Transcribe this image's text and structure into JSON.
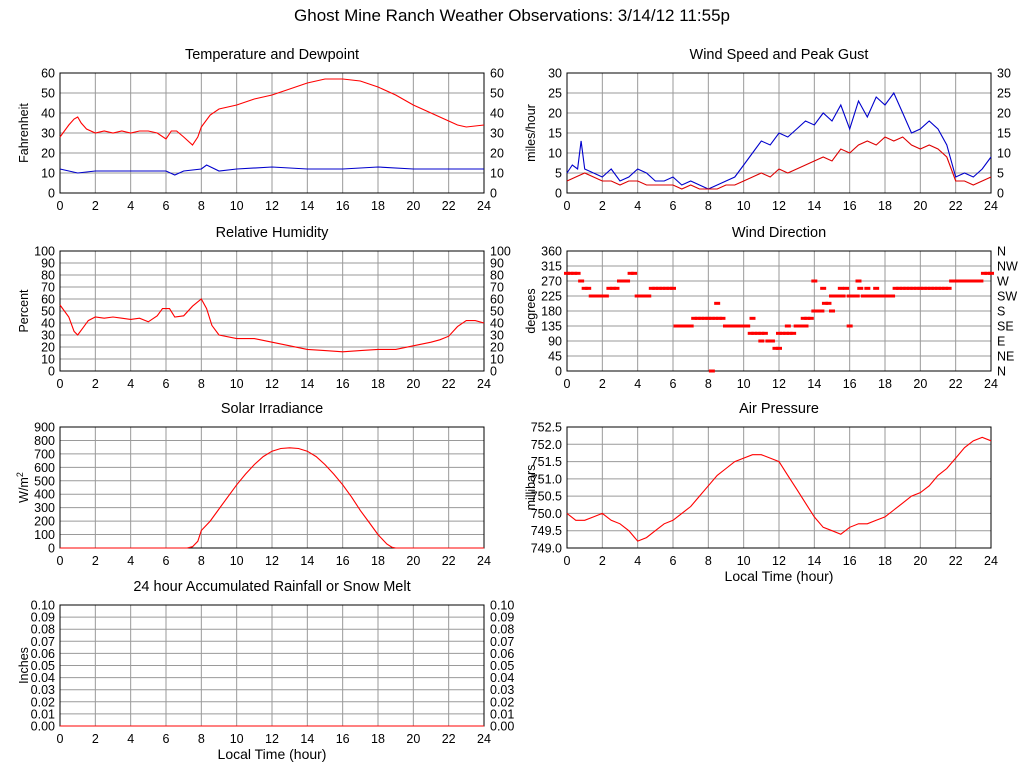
{
  "title": "Ghost Mine Ranch Weather Observations: 3/14/12 11:55p",
  "x_axis": {
    "ticks": [
      "0",
      "2",
      "4",
      "6",
      "8",
      "10",
      "12",
      "14",
      "16",
      "18",
      "20",
      "22",
      "24"
    ],
    "label": "Local Time (hour)"
  },
  "chart_data": [
    {
      "id": "temperature",
      "type": "line",
      "title": "Temperature and Dewpoint",
      "ylabel": "Fahrenheit",
      "xlim": [
        0,
        24
      ],
      "ylim": [
        0,
        60
      ],
      "yticks": [
        "0",
        "10",
        "20",
        "30",
        "40",
        "50",
        "60"
      ],
      "right_ticks": [
        "0",
        "10",
        "20",
        "30",
        "40",
        "50",
        "60"
      ],
      "grid": true,
      "series": [
        {
          "color": "#ff0000",
          "x": [
            0,
            0.5,
            0.8,
            1.0,
            1.2,
            1.5,
            2.0,
            2.5,
            3.0,
            3.5,
            4.0,
            4.5,
            5.0,
            5.5,
            6.0,
            6.3,
            6.6,
            7.0,
            7.5,
            7.8,
            8.0,
            8.5,
            9.0,
            10,
            11,
            12,
            13,
            14,
            15,
            16,
            17,
            18,
            19,
            20,
            21,
            22,
            22.5,
            23,
            24
          ],
          "y": [
            28,
            34,
            37,
            38,
            35,
            32,
            30,
            31,
            30,
            31,
            30,
            31,
            31,
            30,
            27,
            31,
            31,
            28,
            24,
            28,
            33,
            39,
            42,
            44,
            47,
            49,
            52,
            55,
            57,
            57,
            56,
            53,
            49,
            44,
            40,
            36,
            34,
            33,
            34
          ]
        },
        {
          "color": "#0000cc",
          "x": [
            0,
            1,
            2,
            3,
            4,
            5,
            6,
            6.5,
            7,
            8,
            8.3,
            9,
            10,
            12,
            14,
            16,
            18,
            20,
            22,
            24
          ],
          "y": [
            12,
            10,
            11,
            11,
            11,
            11,
            11,
            9,
            11,
            12,
            14,
            11,
            12,
            13,
            12,
            12,
            13,
            12,
            12,
            12
          ]
        }
      ]
    },
    {
      "id": "wind-speed",
      "type": "line",
      "title": "Wind Speed and Peak Gust",
      "ylabel": "miles/hour",
      "xlim": [
        0,
        24
      ],
      "ylim": [
        0,
        30
      ],
      "yticks": [
        "0",
        "5",
        "10",
        "15",
        "20",
        "25",
        "30"
      ],
      "right_ticks": [
        "0",
        "5",
        "10",
        "15",
        "20",
        "25",
        "30"
      ],
      "grid": true,
      "series": [
        {
          "color": "#0000cc",
          "x": [
            0,
            0.3,
            0.6,
            0.8,
            1.0,
            1.5,
            2,
            2.5,
            3,
            3.5,
            4,
            4.5,
            5,
            5.5,
            6,
            6.5,
            7,
            7.5,
            8,
            8.5,
            9,
            9.5,
            10,
            10.5,
            11,
            11.5,
            12,
            12.5,
            13,
            13.5,
            14,
            14.5,
            15,
            15.5,
            16,
            16.5,
            17,
            17.5,
            18,
            18.5,
            19,
            19.5,
            20,
            20.5,
            21,
            21.5,
            22,
            22.5,
            23,
            23.5,
            24
          ],
          "y": [
            5,
            7,
            6,
            13,
            6,
            5,
            4,
            6,
            3,
            4,
            6,
            5,
            3,
            3,
            4,
            2,
            3,
            2,
            1,
            2,
            3,
            4,
            7,
            10,
            13,
            12,
            15,
            14,
            16,
            18,
            17,
            20,
            18,
            22,
            16,
            23,
            19,
            24,
            22,
            25,
            20,
            15,
            16,
            18,
            16,
            12,
            4,
            5,
            4,
            6,
            9
          ]
        },
        {
          "color": "#dd0000",
          "x": [
            0,
            0.5,
            1,
            1.5,
            2,
            2.5,
            3,
            3.5,
            4,
            4.5,
            5,
            5.5,
            6,
            6.5,
            7,
            7.5,
            8,
            8.5,
            9,
            9.5,
            10,
            10.5,
            11,
            11.5,
            12,
            12.5,
            13,
            13.5,
            14,
            14.5,
            15,
            15.5,
            16,
            16.5,
            17,
            17.5,
            18,
            18.5,
            19,
            19.5,
            20,
            20.5,
            21,
            21.5,
            22,
            22.5,
            23,
            23.5,
            24
          ],
          "y": [
            3,
            4,
            5,
            4,
            3,
            3,
            2,
            3,
            3,
            2,
            2,
            2,
            2,
            1,
            2,
            1,
            1,
            1,
            2,
            2,
            3,
            4,
            5,
            4,
            6,
            5,
            6,
            7,
            8,
            9,
            8,
            11,
            10,
            12,
            13,
            12,
            14,
            13,
            14,
            12,
            11,
            12,
            11,
            9,
            3,
            3,
            2,
            3,
            4
          ]
        }
      ]
    },
    {
      "id": "humidity",
      "type": "line",
      "title": "Relative Humidity",
      "ylabel": "Percent",
      "xlim": [
        0,
        24
      ],
      "ylim": [
        0,
        100
      ],
      "yticks": [
        "0",
        "10",
        "20",
        "30",
        "40",
        "50",
        "60",
        "70",
        "80",
        "90",
        "100"
      ],
      "right_ticks": [
        "0",
        "10",
        "20",
        "30",
        "40",
        "50",
        "60",
        "70",
        "80",
        "90",
        "100"
      ],
      "grid": true,
      "series": [
        {
          "color": "#ff0000",
          "x": [
            0,
            0.5,
            0.8,
            1.0,
            1.3,
            1.6,
            2,
            2.5,
            3,
            3.5,
            4,
            4.5,
            5,
            5.5,
            5.8,
            6.2,
            6.5,
            7,
            7.5,
            8,
            8.3,
            8.6,
            9,
            10,
            11,
            12,
            13,
            14,
            15,
            16,
            17,
            18,
            19,
            20,
            21,
            21.5,
            22,
            22.5,
            23,
            23.5,
            24
          ],
          "y": [
            55,
            45,
            33,
            30,
            36,
            42,
            45,
            44,
            45,
            44,
            43,
            44,
            41,
            46,
            52,
            52,
            45,
            46,
            54,
            60,
            52,
            38,
            30,
            27,
            27,
            24,
            21,
            18,
            17,
            16,
            17,
            18,
            18,
            21,
            24,
            26,
            29,
            37,
            42,
            42,
            40
          ]
        }
      ]
    },
    {
      "id": "wind-direction",
      "type": "scatter",
      "title": "Wind Direction",
      "ylabel": "degrees",
      "xlim": [
        0,
        24
      ],
      "ylim": [
        0,
        360
      ],
      "yticks": [
        "0",
        "45",
        "90",
        "135",
        "180",
        "225",
        "270",
        "315",
        "360"
      ],
      "right_ticks": [
        "N",
        "NE",
        "E",
        "SE",
        "S",
        "SW",
        "W",
        "NW",
        "N"
      ],
      "grid": true,
      "series": [
        {
          "color": "#ff0000",
          "x": [
            0.0,
            0.2,
            0.4,
            0.6,
            0.8,
            1.0,
            1.2,
            1.4,
            1.6,
            1.8,
            2.0,
            2.2,
            2.4,
            2.6,
            2.8,
            3.0,
            3.2,
            3.4,
            3.6,
            3.8,
            4.0,
            4.2,
            4.4,
            4.6,
            4.8,
            5.0,
            5.2,
            5.4,
            5.6,
            5.8,
            6.0,
            6.2,
            6.4,
            6.6,
            6.8,
            7.0,
            7.2,
            7.4,
            7.6,
            7.8,
            8.0,
            8.2,
            8.4,
            8.6,
            8.8,
            9.0,
            9.2,
            9.4,
            9.6,
            9.8,
            10.0,
            10.2,
            10.4,
            10.6,
            10.8,
            11.0,
            11.2,
            11.4,
            11.6,
            11.8,
            12.0,
            12.2,
            12.4,
            12.6,
            12.8,
            13.0,
            13.2,
            13.4,
            13.6,
            13.8,
            14.0,
            14.2,
            14.4,
            14.6,
            14.8,
            15.0,
            15.2,
            15.4,
            15.6,
            15.8,
            16.0,
            16.2,
            16.4,
            16.6,
            16.8,
            17.0,
            17.2,
            17.4,
            17.6,
            17.8,
            18.0,
            18.2,
            18.4,
            18.6,
            18.8,
            19.0,
            19.2,
            19.4,
            19.6,
            19.8,
            20.0,
            20.2,
            20.4,
            20.6,
            20.8,
            21.0,
            21.2,
            21.4,
            21.6,
            21.8,
            22.0,
            22.2,
            22.4,
            22.6,
            22.8,
            23.0,
            23.2,
            23.4,
            23.6,
            23.8,
            24.0,
            8.2,
            8.5,
            10.5,
            11.0,
            11.5,
            12.0,
            12.5,
            13.5,
            14.0,
            14.5,
            15.0,
            15.5,
            16.0,
            16.5,
            17.0,
            17.5
          ],
          "y": [
            293,
            293,
            293,
            293,
            270,
            248,
            248,
            225,
            225,
            225,
            225,
            225,
            248,
            248,
            248,
            270,
            270,
            270,
            293,
            293,
            225,
            225,
            225,
            225,
            248,
            248,
            248,
            248,
            248,
            248,
            248,
            135,
            135,
            135,
            135,
            135,
            158,
            158,
            158,
            158,
            158,
            158,
            158,
            158,
            158,
            135,
            135,
            135,
            135,
            135,
            135,
            135,
            113,
            113,
            113,
            113,
            113,
            90,
            90,
            68,
            68,
            113,
            113,
            113,
            113,
            135,
            135,
            158,
            158,
            158,
            180,
            180,
            180,
            203,
            203,
            225,
            225,
            225,
            225,
            248,
            225,
            225,
            225,
            248,
            225,
            225,
            225,
            225,
            225,
            225,
            225,
            225,
            225,
            248,
            248,
            248,
            248,
            248,
            248,
            248,
            248,
            248,
            248,
            248,
            248,
            248,
            248,
            248,
            248,
            270,
            270,
            270,
            270,
            270,
            270,
            270,
            270,
            270,
            293,
            293,
            293,
            0,
            203,
            158,
            90,
            90,
            113,
            135,
            135,
            270,
            248,
            180,
            248,
            135,
            270,
            248,
            248
          ]
        }
      ]
    },
    {
      "id": "solar",
      "type": "line",
      "title": "Solar Irradiance",
      "ylabel": "W/m",
      "ylabel_sup": "2",
      "xlim": [
        0,
        24
      ],
      "ylim": [
        0,
        900
      ],
      "yticks": [
        "0",
        "100",
        "200",
        "300",
        "400",
        "500",
        "600",
        "700",
        "800",
        "900"
      ],
      "grid": true,
      "series": [
        {
          "color": "#ff0000",
          "x": [
            0,
            7.2,
            7.5,
            7.8,
            8,
            8.5,
            9,
            9.5,
            10,
            10.5,
            11,
            11.5,
            12,
            12.5,
            13,
            13.5,
            14,
            14.5,
            15,
            15.5,
            16,
            16.5,
            17,
            17.5,
            18,
            18.5,
            18.8,
            19,
            19.3,
            24
          ],
          "y": [
            0,
            0,
            10,
            50,
            130,
            200,
            290,
            380,
            470,
            550,
            620,
            680,
            720,
            740,
            745,
            740,
            720,
            680,
            620,
            550,
            470,
            380,
            280,
            190,
            100,
            30,
            5,
            0,
            0,
            0
          ]
        }
      ]
    },
    {
      "id": "pressure",
      "type": "line",
      "title": "Air Pressure",
      "ylabel": "millibars",
      "xlim": [
        0,
        24
      ],
      "ylim": [
        749.0,
        752.5
      ],
      "yticks": [
        "749.0",
        "749.5",
        "750.0",
        "750.5",
        "751.0",
        "751.5",
        "752.0",
        "752.5"
      ],
      "grid": true,
      "series": [
        {
          "color": "#ff0000",
          "x": [
            0,
            0.5,
            1.0,
            1.5,
            2.0,
            2.5,
            3.0,
            3.5,
            4.0,
            4.5,
            5.0,
            5.5,
            6.0,
            6.5,
            7.0,
            7.5,
            8.0,
            8.5,
            9.0,
            9.5,
            10.0,
            10.5,
            11.0,
            11.5,
            12.0,
            12.5,
            13.0,
            13.5,
            14.0,
            14.5,
            15.0,
            15.5,
            16.0,
            16.5,
            17.0,
            17.5,
            18.0,
            18.5,
            19.0,
            19.5,
            20.0,
            20.5,
            21.0,
            21.5,
            22.0,
            22.5,
            23.0,
            23.5,
            24.0
          ],
          "y": [
            750.0,
            749.8,
            749.8,
            749.9,
            750.0,
            749.8,
            749.7,
            749.5,
            749.2,
            749.3,
            749.5,
            749.7,
            749.8,
            750.0,
            750.2,
            750.5,
            750.8,
            751.1,
            751.3,
            751.5,
            751.6,
            751.7,
            751.7,
            751.6,
            751.5,
            751.1,
            750.7,
            750.3,
            749.9,
            749.6,
            749.5,
            749.4,
            749.6,
            749.7,
            749.7,
            749.8,
            749.9,
            750.1,
            750.3,
            750.5,
            750.6,
            750.8,
            751.1,
            751.3,
            751.6,
            751.9,
            752.1,
            752.2,
            752.1
          ]
        }
      ]
    },
    {
      "id": "rainfall",
      "type": "line",
      "title": "24 hour Accumulated Rainfall or Snow Melt",
      "ylabel": "Inches",
      "xlim": [
        0,
        24
      ],
      "ylim": [
        0,
        0.1
      ],
      "yticks": [
        "0.00",
        "0.01",
        "0.02",
        "0.03",
        "0.04",
        "0.05",
        "0.06",
        "0.07",
        "0.08",
        "0.09",
        "0.10"
      ],
      "right_ticks": [
        "0.00",
        "0.01",
        "0.02",
        "0.03",
        "0.04",
        "0.05",
        "0.06",
        "0.07",
        "0.08",
        "0.09",
        "0.10"
      ],
      "grid": true,
      "series": [
        {
          "color": "#ff0000",
          "x": [
            0,
            24
          ],
          "y": [
            0,
            0
          ]
        }
      ]
    }
  ]
}
